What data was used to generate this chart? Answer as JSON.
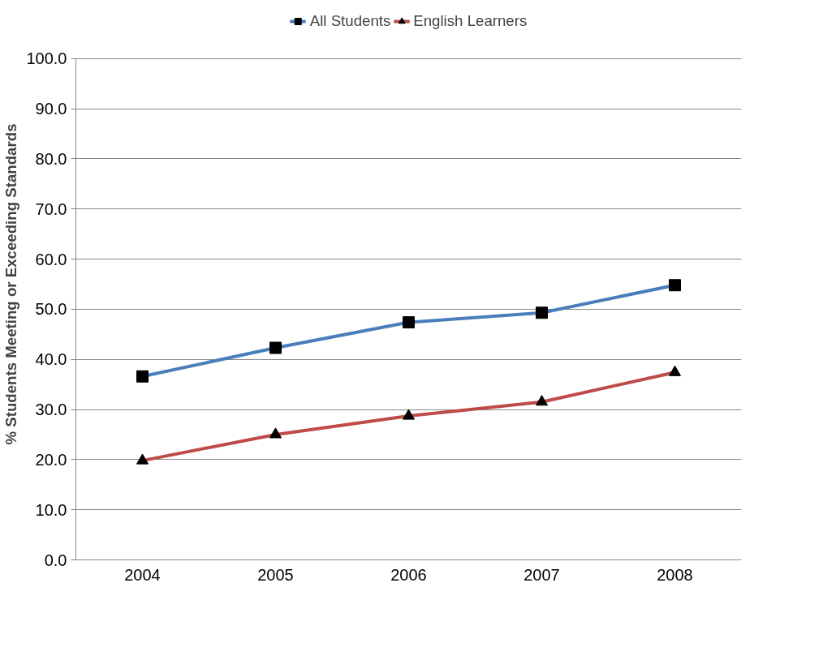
{
  "chart_data": {
    "type": "line",
    "ylabel": "% Students Meeting or Exceeding Standards",
    "categories": [
      "2004",
      "2005",
      "2006",
      "2007",
      "2008"
    ],
    "series": [
      {
        "name": "All Students",
        "color": "#4a7ebb",
        "values": [
          36.6,
          42.3,
          47.4,
          49.3,
          54.8
        ],
        "marker": "square"
      },
      {
        "name": "English Learners",
        "color": "#be4b48",
        "values": [
          19.8,
          25.0,
          28.7,
          31.5,
          37.4
        ],
        "marker": "triangle"
      }
    ],
    "ylim": [
      0,
      100
    ],
    "yticks": [
      {
        "value": 0,
        "label": "0.0"
      },
      {
        "value": 10,
        "label": "10.0"
      },
      {
        "value": 20,
        "label": "20.0"
      },
      {
        "value": 30,
        "label": "30.0"
      },
      {
        "value": 40,
        "label": "40.0"
      },
      {
        "value": 50,
        "label": "50.0"
      },
      {
        "value": 60,
        "label": "60.0"
      },
      {
        "value": 70,
        "label": "70.0"
      },
      {
        "value": 80,
        "label": "80.0"
      },
      {
        "value": 90,
        "label": "90.0"
      },
      {
        "value": 100,
        "label": "100.0"
      }
    ],
    "grid": "y",
    "legend": "top",
    "line_style": "solid"
  }
}
